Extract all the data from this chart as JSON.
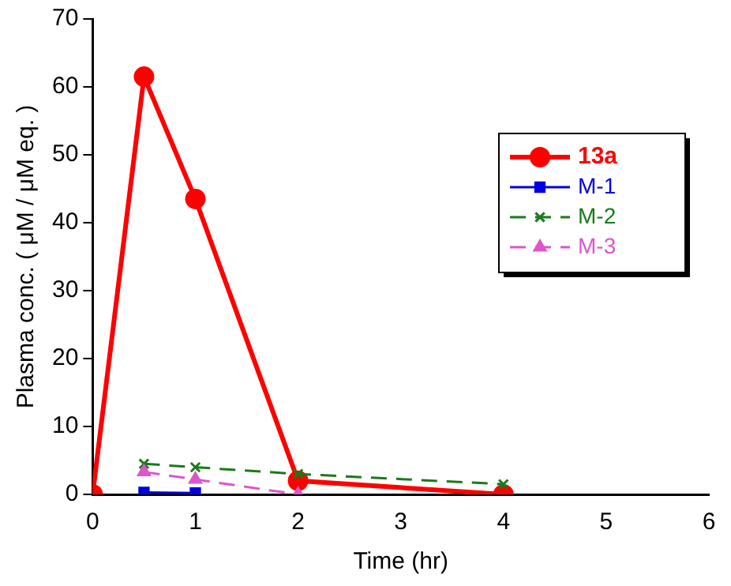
{
  "chart_data": {
    "type": "line",
    "xlabel": "Time (hr)",
    "ylabel": "Plasma conc. ( μM / μM eq. )",
    "xlim": [
      0,
      6
    ],
    "xticks": [
      0,
      1,
      2,
      3,
      4,
      5,
      6
    ],
    "ylim": [
      0,
      70
    ],
    "yticks": [
      0,
      10,
      20,
      30,
      40,
      50,
      60,
      70
    ],
    "grid": false,
    "legend": "right",
    "series": [
      {
        "name": "13a",
        "color": "#ff0000",
        "marker": "circle",
        "line_style": "solid",
        "x": [
          0,
          0.5,
          1,
          2,
          4
        ],
        "values": [
          0,
          61.5,
          43.5,
          2,
          0
        ]
      },
      {
        "name": "M-1",
        "color": "#0000dd",
        "marker": "square",
        "line_style": "solid",
        "x": [
          0.5,
          1
        ],
        "values": [
          0.3,
          0.2
        ]
      },
      {
        "name": "M-2",
        "color": "#1a7a1a",
        "marker": "cross",
        "line_style": "dashed",
        "x": [
          0.5,
          1,
          2,
          4
        ],
        "values": [
          4.5,
          4,
          3,
          1.5
        ]
      },
      {
        "name": "M-3",
        "color": "#dd55cc",
        "marker": "triangle",
        "line_style": "dashed",
        "x": [
          0.5,
          1,
          2
        ],
        "values": [
          3.3,
          2.2,
          0
        ]
      }
    ]
  }
}
